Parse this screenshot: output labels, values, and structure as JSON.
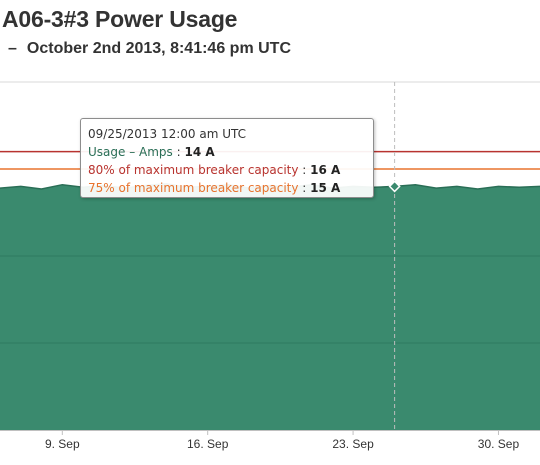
{
  "page": {
    "title": "A06-3#3 Power Usage",
    "subtitle_dash": "–",
    "subtitle": "October 2nd 2013, 8:41:46 pm UTC"
  },
  "colors": {
    "area_fill": "#3a8a6e",
    "area_line": "#2a6e56",
    "limit_80": "#b8332f",
    "limit_75": "#e8732e",
    "grid": "#d8d8d8",
    "crosshair": "#bdbdbd"
  },
  "tooltip": {
    "header": "09/25/2013 12:00 am UTC",
    "rows": [
      {
        "label": "Usage – Amps",
        "value": "14 A",
        "color": "#2a6e56"
      },
      {
        "label": "80% of maximum breaker capacity",
        "value": "16 A",
        "color": "#b8332f"
      },
      {
        "label": "75% of maximum breaker capacity",
        "value": "15 A",
        "color": "#e8732e"
      }
    ]
  },
  "chart_data": {
    "type": "area",
    "xlabels": [
      "9. Sep",
      "16. Sep",
      "23. Sep",
      "30. Sep"
    ],
    "xlabel_dates": [
      "2013-09-09",
      "2013-09-16",
      "2013-09-23",
      "2013-09-30"
    ],
    "x_range": [
      "2013-09-06",
      "2013-10-02"
    ],
    "ylim": [
      0,
      20
    ],
    "grid": true,
    "hover_point": {
      "x": "2013-09-25",
      "y": 14
    },
    "series": [
      {
        "name": "Usage – Amps",
        "type": "area",
        "x": [
          "2013-09-06",
          "2013-09-07",
          "2013-09-08",
          "2013-09-09",
          "2013-09-10",
          "2013-09-11",
          "2013-09-12",
          "2013-09-13",
          "2013-09-14",
          "2013-09-15",
          "2013-09-16",
          "2013-09-17",
          "2013-09-18",
          "2013-09-19",
          "2013-09-20",
          "2013-09-21",
          "2013-09-22",
          "2013-09-23",
          "2013-09-24",
          "2013-09-25",
          "2013-09-26",
          "2013-09-27",
          "2013-09-28",
          "2013-09-29",
          "2013-09-30",
          "2013-10-01",
          "2013-10-02"
        ],
        "y": [
          13.9,
          14.0,
          13.85,
          14.1,
          13.95,
          14.05,
          13.9,
          14.05,
          14.15,
          13.95,
          14.0,
          14.1,
          13.9,
          14.05,
          13.95,
          14.1,
          13.9,
          14.0,
          13.95,
          14.0,
          14.1,
          13.9,
          14.0,
          13.85,
          14.0,
          13.95,
          14.0
        ]
      },
      {
        "name": "80% of maximum breaker capacity",
        "type": "line",
        "value": 16
      },
      {
        "name": "75% of maximum breaker capacity",
        "type": "line",
        "value": 15
      }
    ]
  }
}
